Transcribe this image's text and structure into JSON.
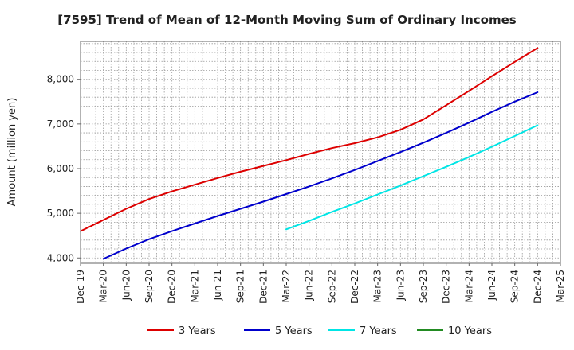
{
  "chart_data": {
    "type": "line",
    "title": "[7595]  Trend of Mean of 12-Month Moving Sum of Ordinary Incomes",
    "xlabel": "",
    "ylabel": "Amount (million yen)",
    "x_ticks": [
      "Dec-19",
      "Mar-20",
      "Jun-20",
      "Sep-20",
      "Dec-20",
      "Mar-21",
      "Jun-21",
      "Sep-21",
      "Dec-21",
      "Mar-22",
      "Jun-22",
      "Sep-22",
      "Dec-22",
      "Mar-23",
      "Jun-23",
      "Sep-23",
      "Dec-23",
      "Mar-24",
      "Jun-24",
      "Sep-24",
      "Dec-24",
      "Mar-25"
    ],
    "y_ticks": [
      4000,
      5000,
      6000,
      7000,
      8000
    ],
    "y_tick_labels": [
      "4,000",
      "5,000",
      "6,000",
      "7,000",
      "8,000"
    ],
    "ylim": [
      3880,
      8850
    ],
    "grid": true,
    "legend_position": "bottom",
    "series": [
      {
        "name": "3 Years",
        "color": "#dd0000",
        "x": [
          "Dec-19",
          "Mar-20",
          "Jun-20",
          "Sep-20",
          "Dec-20",
          "Mar-21",
          "Jun-21",
          "Sep-21",
          "Dec-21",
          "Mar-22",
          "Jun-22",
          "Sep-22",
          "Dec-22",
          "Mar-23",
          "Jun-23",
          "Sep-23",
          "Dec-23",
          "Mar-24",
          "Jun-24",
          "Sep-24",
          "Dec-24"
        ],
        "values": [
          4600,
          4850,
          5100,
          5320,
          5490,
          5640,
          5790,
          5930,
          6060,
          6190,
          6330,
          6460,
          6570,
          6700,
          6870,
          7100,
          7420,
          7740,
          8070,
          8390,
          8700
        ]
      },
      {
        "name": "5 Years",
        "color": "#0000cc",
        "x": [
          "Mar-20",
          "Jun-20",
          "Sep-20",
          "Dec-20",
          "Mar-21",
          "Jun-21",
          "Sep-21",
          "Dec-21",
          "Mar-22",
          "Jun-22",
          "Sep-22",
          "Dec-22",
          "Mar-23",
          "Jun-23",
          "Sep-23",
          "Dec-23",
          "Mar-24",
          "Jun-24",
          "Sep-24",
          "Dec-24"
        ],
        "values": [
          3980,
          4210,
          4420,
          4600,
          4770,
          4940,
          5100,
          5260,
          5430,
          5600,
          5780,
          5970,
          6170,
          6370,
          6580,
          6800,
          7030,
          7270,
          7500,
          7710
        ]
      },
      {
        "name": "7 Years",
        "color": "#00e5e5",
        "x": [
          "Mar-22",
          "Jun-22",
          "Sep-22",
          "Dec-22",
          "Mar-23",
          "Jun-23",
          "Sep-23",
          "Dec-23",
          "Mar-24",
          "Jun-24",
          "Sep-24",
          "Dec-24"
        ],
        "values": [
          4640,
          4830,
          5030,
          5220,
          5420,
          5620,
          5830,
          6040,
          6260,
          6490,
          6730,
          6970
        ]
      },
      {
        "name": "10 Years",
        "color": "#228b22",
        "x": [],
        "values": []
      }
    ]
  }
}
